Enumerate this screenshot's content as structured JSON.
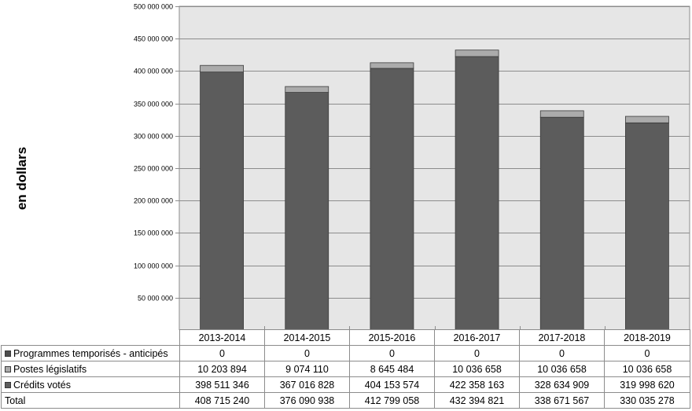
{
  "chart_data": {
    "type": "bar",
    "stacked": true,
    "ylabel": "en dollars",
    "ylim": [
      0,
      500000000
    ],
    "y_tick_step": 50000000,
    "y_tick_labels": [
      "50 000 000",
      "100 000 000",
      "150 000 000",
      "200 000 000",
      "250 000 000",
      "300 000 000",
      "350 000 000",
      "400 000 000",
      "450 000 000",
      "500 000 000"
    ],
    "categories": [
      "2013-2014",
      "2014-2015",
      "2015-2016",
      "2016-2017",
      "2017-2018",
      "2018-2019"
    ],
    "series": [
      {
        "name": "Programmes temporisés - anticipés",
        "color": "#4d4d4d",
        "values": [
          0,
          0,
          0,
          0,
          0,
          0
        ],
        "labels": [
          "0",
          "0",
          "0",
          "0",
          "0",
          "0"
        ]
      },
      {
        "name": "Postes législatifs",
        "color": "#ababab",
        "values": [
          10203894,
          9074110,
          8645484,
          10036658,
          10036658,
          10036658
        ],
        "labels": [
          "10 203 894",
          "9 074 110",
          "8 645 484",
          "10 036 658",
          "10 036 658",
          "10 036 658"
        ]
      },
      {
        "name": "Crédits votés",
        "color": "#5c5c5c",
        "values": [
          398511346,
          367016828,
          404153574,
          422358163,
          328634909,
          319998620
        ],
        "labels": [
          "398 511 346",
          "367 016 828",
          "404 153 574",
          "422 358 163",
          "328 634 909",
          "319 998 620"
        ]
      }
    ],
    "total": {
      "name": "Total",
      "values": [
        408715240,
        376090938,
        412799058,
        432394821,
        338671567,
        330035278
      ],
      "labels": [
        "408 715 240",
        "376 090 938",
        "412 799 058",
        "432 394 821",
        "338 671 567",
        "330 035 278"
      ]
    }
  }
}
